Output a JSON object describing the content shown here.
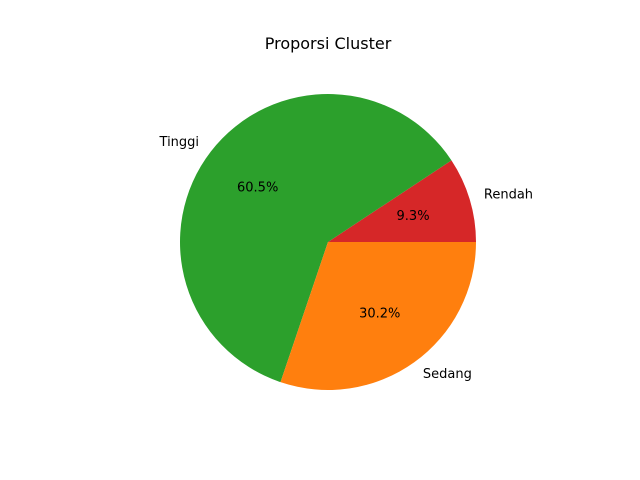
{
  "chart_data": {
    "type": "pie",
    "title": "Proporsi Cluster",
    "slices": [
      {
        "label": "Rendah",
        "value": 9.3,
        "pct_label": "9.3%",
        "color": "#d62728"
      },
      {
        "label": "Tinggi",
        "value": 60.5,
        "pct_label": "60.5%",
        "color": "#2ca02c"
      },
      {
        "label": "Sedang",
        "value": 30.2,
        "pct_label": "30.2%",
        "color": "#ff7f0e"
      }
    ],
    "start_angle_deg": 0,
    "direction": "counterclockwise"
  }
}
